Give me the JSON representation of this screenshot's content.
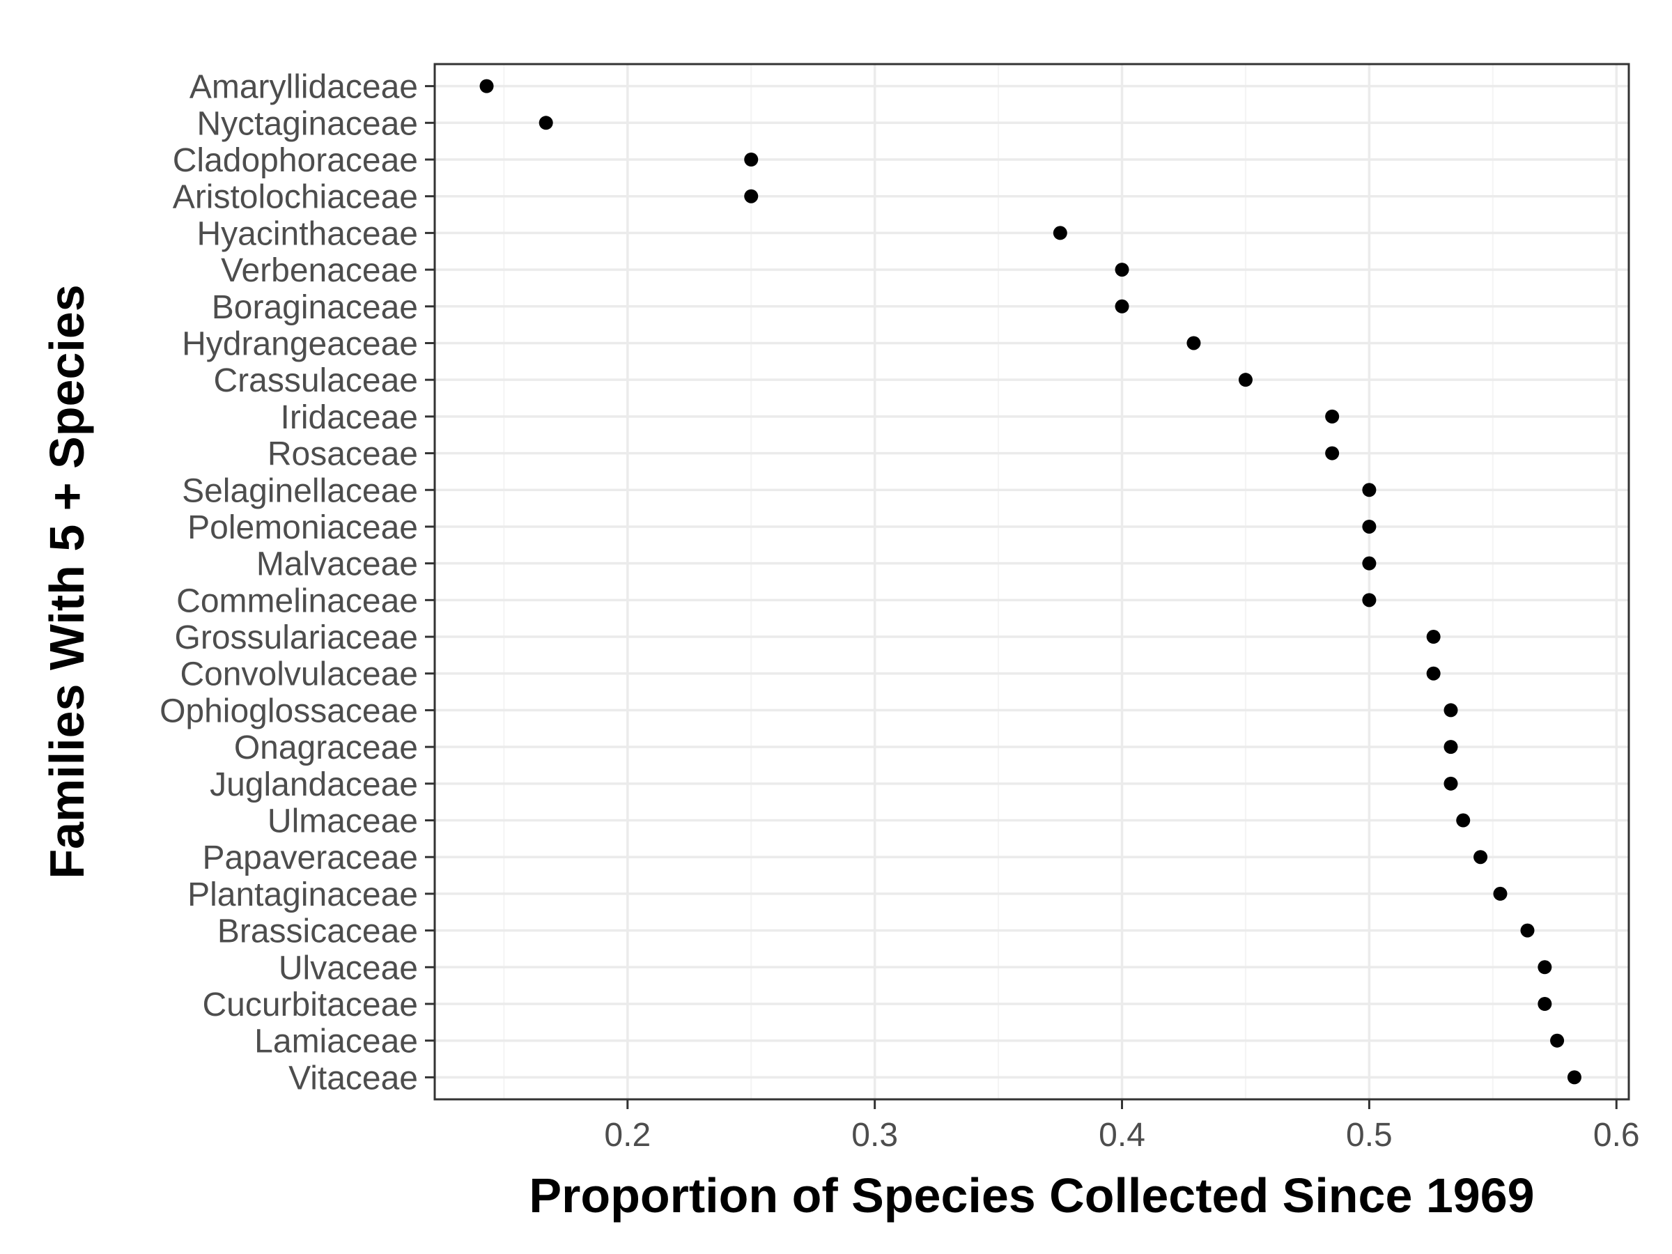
{
  "chart_data": {
    "type": "scatter",
    "title": "",
    "xlabel": "Proportion of Species Collected Since 1969",
    "ylabel": "Families With 5 + Species",
    "xlim": [
      0.122,
      0.605
    ],
    "x_ticks": [
      0.2,
      0.3,
      0.4,
      0.5,
      0.6
    ],
    "x_tick_labels": [
      "0.2",
      "0.3",
      "0.4",
      "0.5",
      "0.6"
    ],
    "grid": true,
    "legend": "none",
    "point_color": "#000000",
    "categories": [
      "Amaryllidaceae",
      "Nyctaginaceae",
      "Cladophoraceae",
      "Aristolochiaceae",
      "Hyacinthaceae",
      "Verbenaceae",
      "Boraginaceae",
      "Hydrangeaceae",
      "Crassulaceae",
      "Iridaceae",
      "Rosaceae",
      "Selaginellaceae",
      "Polemoniaceae",
      "Malvaceae",
      "Commelinaceae",
      "Grossulariaceae",
      "Convolvulaceae",
      "Ophioglossaceae",
      "Onagraceae",
      "Juglandaceae",
      "Ulmaceae",
      "Papaveraceae",
      "Plantaginaceae",
      "Brassicaceae",
      "Ulvaceae",
      "Cucurbitaceae",
      "Lamiaceae",
      "Vitaceae"
    ],
    "values": [
      0.143,
      0.167,
      0.25,
      0.25,
      0.375,
      0.4,
      0.4,
      0.429,
      0.45,
      0.485,
      0.485,
      0.5,
      0.5,
      0.5,
      0.5,
      0.526,
      0.526,
      0.533,
      0.533,
      0.533,
      0.538,
      0.545,
      0.553,
      0.564,
      0.571,
      0.571,
      0.576,
      0.583
    ]
  }
}
